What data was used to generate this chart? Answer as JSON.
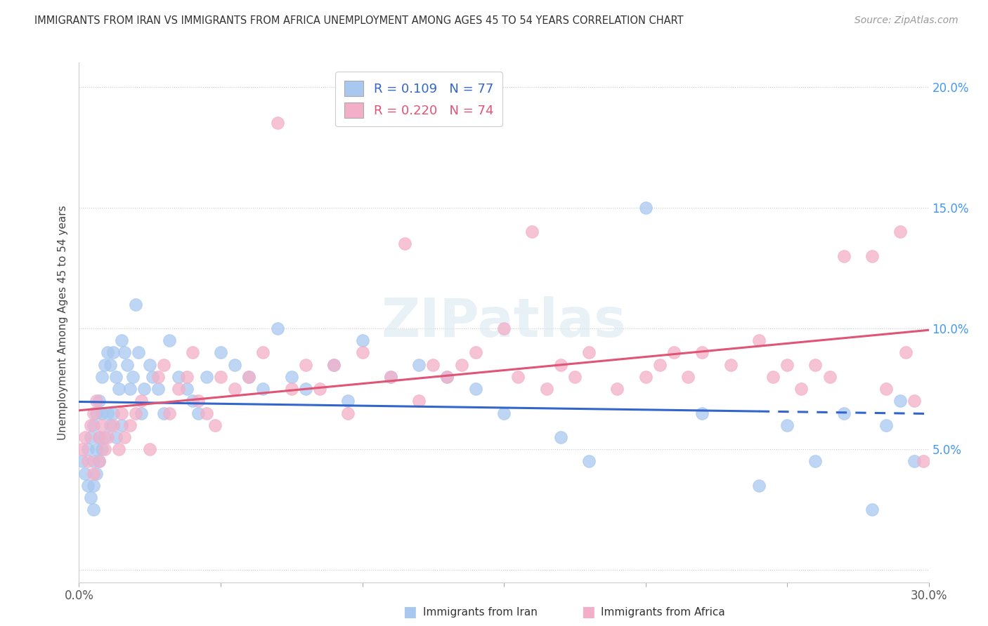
{
  "title": "IMMIGRANTS FROM IRAN VS IMMIGRANTS FROM AFRICA UNEMPLOYMENT AMONG AGES 45 TO 54 YEARS CORRELATION CHART",
  "source": "Source: ZipAtlas.com",
  "ylabel": "Unemployment Among Ages 45 to 54 years",
  "xlim": [
    0.0,
    0.3
  ],
  "ylim": [
    -0.005,
    0.21
  ],
  "xticks": [
    0.0,
    0.05,
    0.1,
    0.15,
    0.2,
    0.25,
    0.3
  ],
  "xticklabels": [
    "0.0%",
    "",
    "",
    "",
    "",
    "",
    "30.0%"
  ],
  "yticks": [
    0.0,
    0.05,
    0.1,
    0.15,
    0.2
  ],
  "yticklabels": [
    "",
    "5.0%",
    "10.0%",
    "15.0%",
    "20.0%"
  ],
  "iran_R": 0.109,
  "iran_N": 77,
  "africa_R": 0.22,
  "africa_N": 74,
  "iran_color": "#a8c8f0",
  "africa_color": "#f4afc8",
  "iran_line_color": "#3366cc",
  "africa_line_color": "#e05575",
  "iran_x": [
    0.001,
    0.002,
    0.003,
    0.003,
    0.004,
    0.004,
    0.005,
    0.005,
    0.005,
    0.005,
    0.006,
    0.006,
    0.006,
    0.007,
    0.007,
    0.007,
    0.008,
    0.008,
    0.008,
    0.009,
    0.009,
    0.01,
    0.01,
    0.011,
    0.011,
    0.012,
    0.012,
    0.013,
    0.013,
    0.014,
    0.015,
    0.015,
    0.016,
    0.017,
    0.018,
    0.019,
    0.02,
    0.021,
    0.022,
    0.023,
    0.025,
    0.026,
    0.028,
    0.03,
    0.032,
    0.035,
    0.038,
    0.04,
    0.042,
    0.045,
    0.05,
    0.055,
    0.06,
    0.065,
    0.07,
    0.075,
    0.08,
    0.09,
    0.095,
    0.1,
    0.11,
    0.12,
    0.13,
    0.14,
    0.15,
    0.17,
    0.18,
    0.2,
    0.22,
    0.24,
    0.25,
    0.26,
    0.27,
    0.28,
    0.285,
    0.29,
    0.295
  ],
  "iran_y": [
    0.045,
    0.04,
    0.05,
    0.035,
    0.055,
    0.03,
    0.06,
    0.045,
    0.035,
    0.025,
    0.065,
    0.05,
    0.04,
    0.07,
    0.055,
    0.045,
    0.08,
    0.065,
    0.05,
    0.085,
    0.055,
    0.09,
    0.065,
    0.085,
    0.06,
    0.09,
    0.065,
    0.08,
    0.055,
    0.075,
    0.095,
    0.06,
    0.09,
    0.085,
    0.075,
    0.08,
    0.11,
    0.09,
    0.065,
    0.075,
    0.085,
    0.08,
    0.075,
    0.065,
    0.095,
    0.08,
    0.075,
    0.07,
    0.065,
    0.08,
    0.09,
    0.085,
    0.08,
    0.075,
    0.1,
    0.08,
    0.075,
    0.085,
    0.07,
    0.095,
    0.08,
    0.085,
    0.08,
    0.075,
    0.065,
    0.055,
    0.045,
    0.15,
    0.065,
    0.035,
    0.06,
    0.045,
    0.065,
    0.025,
    0.06,
    0.07,
    0.045
  ],
  "africa_x": [
    0.001,
    0.002,
    0.003,
    0.004,
    0.005,
    0.005,
    0.006,
    0.007,
    0.007,
    0.008,
    0.009,
    0.01,
    0.012,
    0.014,
    0.015,
    0.016,
    0.018,
    0.02,
    0.022,
    0.025,
    0.028,
    0.03,
    0.032,
    0.035,
    0.038,
    0.04,
    0.042,
    0.045,
    0.048,
    0.05,
    0.055,
    0.06,
    0.065,
    0.07,
    0.075,
    0.08,
    0.085,
    0.09,
    0.095,
    0.1,
    0.11,
    0.115,
    0.12,
    0.125,
    0.13,
    0.135,
    0.14,
    0.15,
    0.155,
    0.16,
    0.165,
    0.17,
    0.175,
    0.18,
    0.19,
    0.2,
    0.205,
    0.21,
    0.215,
    0.22,
    0.23,
    0.24,
    0.245,
    0.25,
    0.255,
    0.26,
    0.265,
    0.27,
    0.28,
    0.285,
    0.29,
    0.292,
    0.295,
    0.298
  ],
  "africa_y": [
    0.05,
    0.055,
    0.045,
    0.06,
    0.04,
    0.065,
    0.07,
    0.055,
    0.045,
    0.06,
    0.05,
    0.055,
    0.06,
    0.05,
    0.065,
    0.055,
    0.06,
    0.065,
    0.07,
    0.05,
    0.08,
    0.085,
    0.065,
    0.075,
    0.08,
    0.09,
    0.07,
    0.065,
    0.06,
    0.08,
    0.075,
    0.08,
    0.09,
    0.185,
    0.075,
    0.085,
    0.075,
    0.085,
    0.065,
    0.09,
    0.08,
    0.135,
    0.07,
    0.085,
    0.08,
    0.085,
    0.09,
    0.1,
    0.08,
    0.14,
    0.075,
    0.085,
    0.08,
    0.09,
    0.075,
    0.08,
    0.085,
    0.09,
    0.08,
    0.09,
    0.085,
    0.095,
    0.08,
    0.085,
    0.075,
    0.085,
    0.08,
    0.13,
    0.13,
    0.075,
    0.14,
    0.09,
    0.07,
    0.045
  ],
  "watermark_text": "ZIPatlas",
  "background_color": "#ffffff",
  "grid_color": "#cccccc",
  "ytick_color": "#4499ee",
  "xtick_color": "#555555"
}
